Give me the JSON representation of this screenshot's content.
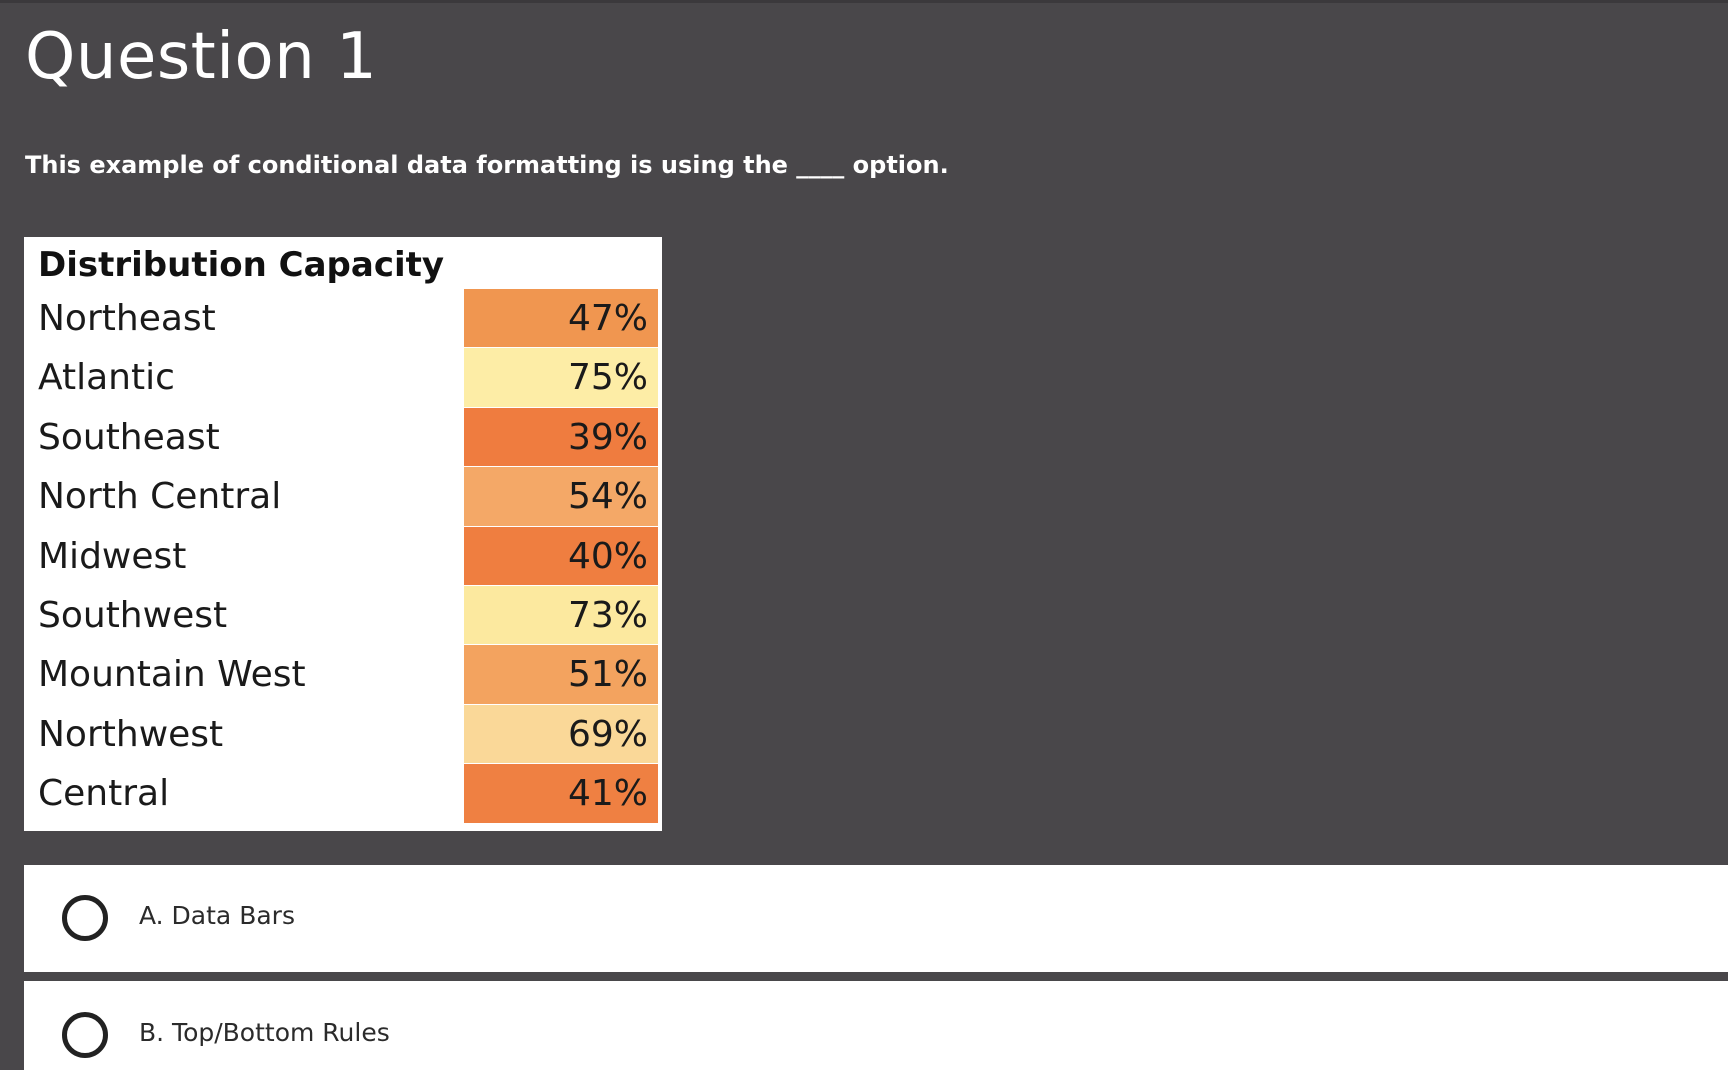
{
  "question": {
    "title": "Question 1",
    "text": "This example of conditional data formatting is using the ____ option."
  },
  "table": {
    "header": "Distribution Capacity",
    "rows": [
      {
        "region": "Northeast",
        "value": "47%",
        "color": "#f09650"
      },
      {
        "region": "Atlantic",
        "value": "75%",
        "color": "#fdeda6"
      },
      {
        "region": "Southeast",
        "value": "39%",
        "color": "#ef7c3f"
      },
      {
        "region": "North Central",
        "value": "54%",
        "color": "#f4a867"
      },
      {
        "region": "Midwest",
        "value": "40%",
        "color": "#ef7e40"
      },
      {
        "region": "Southwest",
        "value": "73%",
        "color": "#fce99f"
      },
      {
        "region": "Mountain West",
        "value": "51%",
        "color": "#f3a35f"
      },
      {
        "region": "Northwest",
        "value": "69%",
        "color": "#fad898"
      },
      {
        "region": "Central",
        "value": "41%",
        "color": "#ef8042"
      }
    ]
  },
  "options": [
    {
      "label": "A. Data Bars"
    },
    {
      "label": "B. Top/Bottom Rules"
    }
  ]
}
